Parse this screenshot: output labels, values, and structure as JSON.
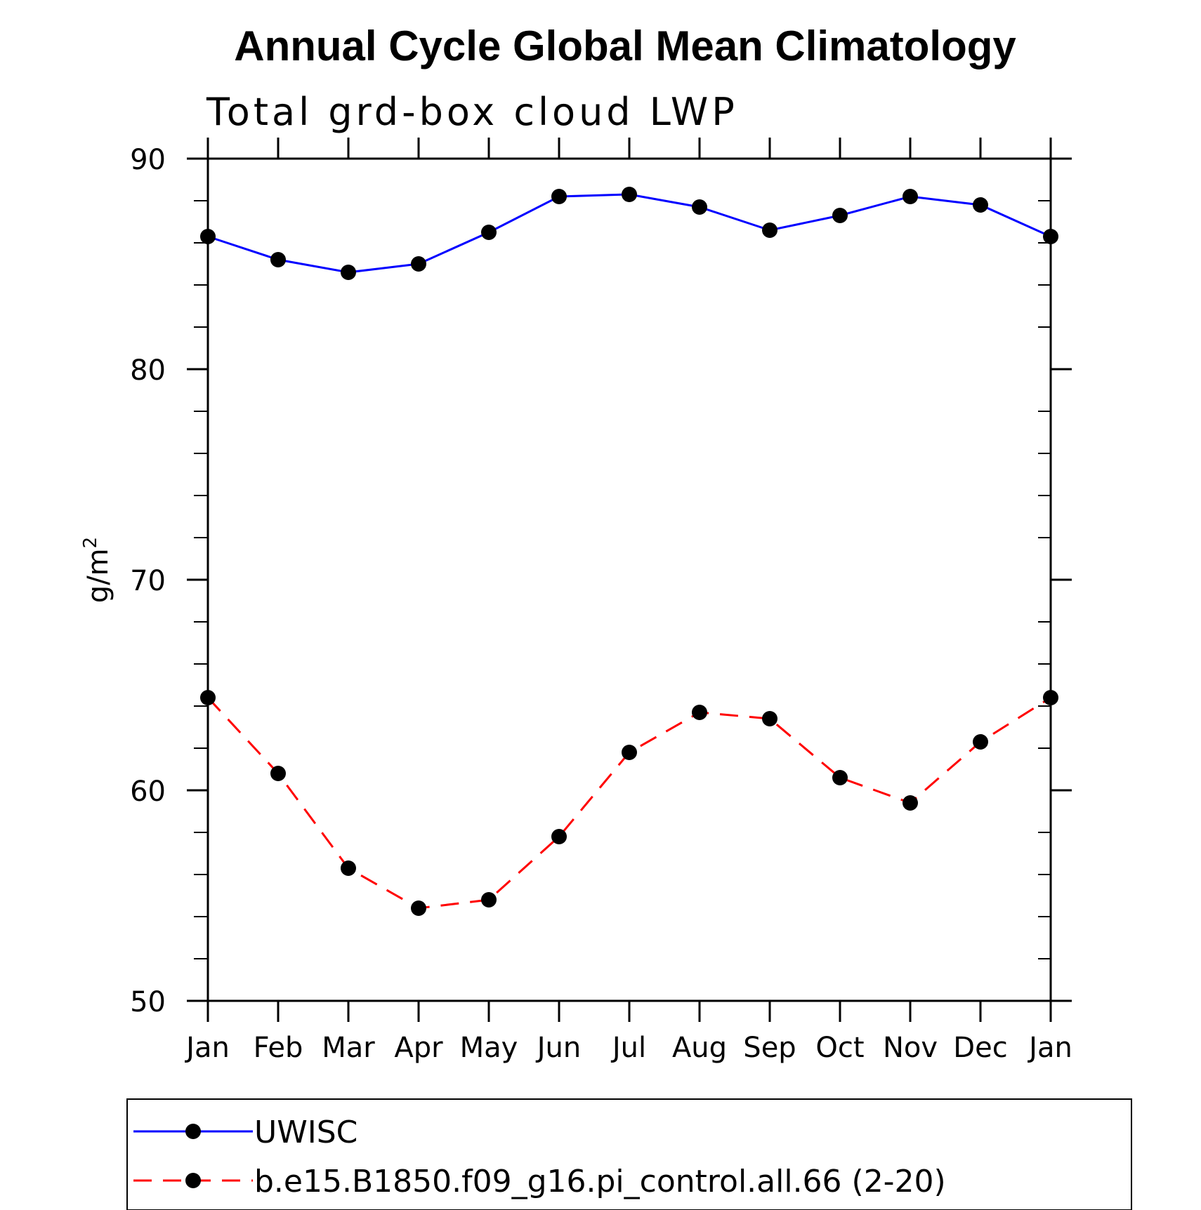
{
  "chart_data": {
    "type": "line",
    "title": "Annual Cycle Global Mean Climatology",
    "subtitle": "Total grd-box cloud LWP",
    "xlabel": "",
    "ylabel": "g/m",
    "ylabel_superscript": "2",
    "categories": [
      "Jan",
      "Feb",
      "Mar",
      "Apr",
      "May",
      "Jun",
      "Jul",
      "Aug",
      "Sep",
      "Oct",
      "Nov",
      "Dec",
      "Jan"
    ],
    "ylim": [
      50,
      90
    ],
    "yticks": [
      50,
      60,
      70,
      80,
      90
    ],
    "grid": false,
    "legend_placement": "bottom",
    "series": [
      {
        "name": "UWISC",
        "color": "#0000ff",
        "style": "solid",
        "marker": "filled-circle",
        "values": [
          86.3,
          85.2,
          84.6,
          85.0,
          86.5,
          88.2,
          88.3,
          87.7,
          86.6,
          87.3,
          88.2,
          87.8,
          86.3
        ]
      },
      {
        "name": "b.e15.B1850.f09_g16.pi_control.all.66 (2-20)",
        "color": "#ff0000",
        "style": "dashed",
        "marker": "filled-circle",
        "values": [
          64.4,
          60.8,
          56.3,
          54.4,
          54.8,
          57.8,
          61.8,
          63.7,
          63.4,
          60.6,
          59.4,
          62.3,
          64.4
        ]
      }
    ]
  }
}
